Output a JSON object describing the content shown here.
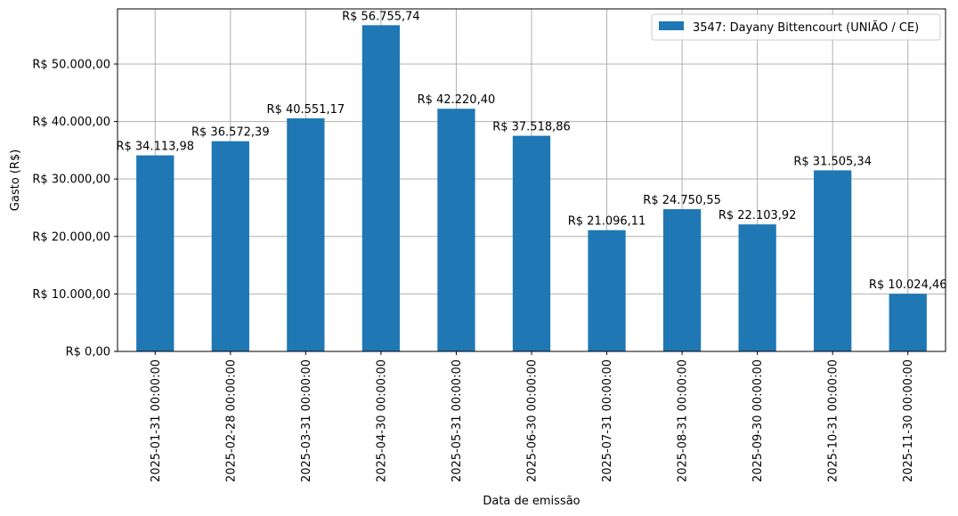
{
  "chart_data": {
    "type": "bar",
    "categories": [
      "2025-01-31 00:00:00",
      "2025-02-28 00:00:00",
      "2025-03-31 00:00:00",
      "2025-04-30 00:00:00",
      "2025-05-31 00:00:00",
      "2025-06-30 00:00:00",
      "2025-07-31 00:00:00",
      "2025-08-31 00:00:00",
      "2025-09-30 00:00:00",
      "2025-10-31 00:00:00",
      "2025-11-30 00:00:00"
    ],
    "series": [
      {
        "name": "3547: Dayany Bittencourt (UNIÃO / CE)",
        "color": "#1f77b4",
        "values": [
          34113.98,
          36572.39,
          40551.17,
          56755.74,
          42220.4,
          37518.86,
          21096.11,
          24750.55,
          22103.92,
          31505.34,
          10024.46
        ],
        "labels": [
          "R$ 34.113,98",
          "R$ 36.572,39",
          "R$ 40.551,17",
          "R$ 56.755,74",
          "R$ 42.220,40",
          "R$ 37.518,86",
          "R$ 21.096,11",
          "R$ 24.750,55",
          "R$ 22.103,92",
          "R$ 31.505,34",
          "R$ 10.024,46"
        ]
      }
    ],
    "xlabel": "Data de emissão",
    "ylabel": "Gasto (R$)",
    "ylim": [
      0,
      59593.5
    ],
    "yticks": [
      0,
      10000,
      20000,
      30000,
      40000,
      50000
    ],
    "ytick_labels": [
      "R$ 0,00",
      "R$ 10.000,00",
      "R$ 20.000,00",
      "R$ 30.000,00",
      "R$ 40.000,00",
      "R$ 50.000,00"
    ],
    "grid": true,
    "legend": "top-right"
  }
}
